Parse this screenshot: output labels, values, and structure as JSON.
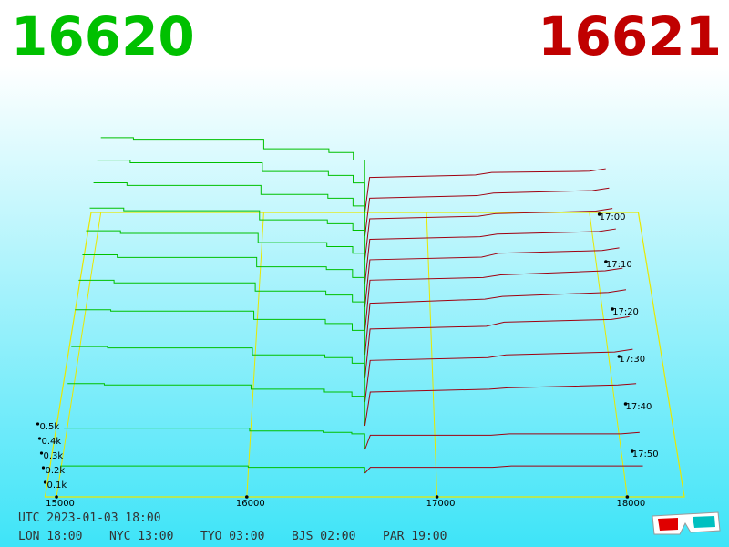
{
  "chart_data": {
    "type": "depth3d",
    "best_bid": "16620",
    "best_ask": "16621",
    "bid_color": "#00c000",
    "ask_color": "#a00010",
    "xlim": [
      14940,
      18300
    ],
    "xticks": [
      15000,
      16000,
      17000,
      18000
    ],
    "tlim": [
      0,
      60
    ],
    "tticks": [
      {
        "value": 0,
        "label": "17:00"
      },
      {
        "value": 10,
        "label": "17:10"
      },
      {
        "value": 20,
        "label": "17:20"
      },
      {
        "value": 30,
        "label": "17:30"
      },
      {
        "value": 40,
        "label": "17:40"
      },
      {
        "value": 50,
        "label": "17:50"
      }
    ],
    "vticks": [
      {
        "value": 0.1,
        "label": "0.1k"
      },
      {
        "value": 0.2,
        "label": "0.2k"
      },
      {
        "value": 0.3,
        "label": "0.3k"
      },
      {
        "value": 0.4,
        "label": "0.4k"
      },
      {
        "value": 0.5,
        "label": "0.5k"
      }
    ],
    "bid_prices": [
      15000,
      15200,
      16000,
      16400,
      16550,
      16620
    ],
    "ask_prices": [
      16621,
      16650,
      17300,
      17400,
      18000,
      18100
    ],
    "slices": [
      {
        "t": 0,
        "bids": [
          0.6,
          0.58,
          0.51,
          0.48,
          0.42,
          0
        ],
        "asks": [
          0,
          0.28,
          0.3,
          0.32,
          0.33,
          0.35
        ]
      },
      {
        "t": 5,
        "bids": [
          0.6,
          0.58,
          0.51,
          0.48,
          0.42,
          0
        ],
        "asks": [
          0,
          0.3,
          0.32,
          0.34,
          0.36,
          0.38
        ]
      },
      {
        "t": 10,
        "bids": [
          0.6,
          0.58,
          0.51,
          0.48,
          0.42,
          0
        ],
        "asks": [
          0,
          0.32,
          0.34,
          0.36,
          0.38,
          0.4
        ]
      },
      {
        "t": 15,
        "bids": [
          0.58,
          0.56,
          0.49,
          0.46,
          0.41,
          0
        ],
        "asks": [
          0,
          0.34,
          0.36,
          0.38,
          0.4,
          0.42
        ]
      },
      {
        "t": 20,
        "bids": [
          0.58,
          0.56,
          0.49,
          0.46,
          0.41,
          0
        ],
        "asks": [
          0,
          0.36,
          0.38,
          0.41,
          0.43,
          0.45
        ]
      },
      {
        "t": 25,
        "bids": [
          0.57,
          0.55,
          0.48,
          0.46,
          0.4,
          0
        ],
        "asks": [
          0,
          0.38,
          0.4,
          0.42,
          0.45,
          0.47
        ]
      },
      {
        "t": 30,
        "bids": [
          0.55,
          0.53,
          0.47,
          0.44,
          0.39,
          0
        ],
        "asks": [
          0,
          0.38,
          0.41,
          0.43,
          0.46,
          0.48
        ]
      },
      {
        "t": 35,
        "bids": [
          0.5,
          0.49,
          0.43,
          0.4,
          0.35,
          0
        ],
        "asks": [
          0,
          0.36,
          0.38,
          0.41,
          0.43,
          0.45
        ]
      },
      {
        "t": 40,
        "bids": [
          0.4,
          0.39,
          0.34,
          0.32,
          0.28,
          0
        ],
        "asks": [
          0,
          0.3,
          0.32,
          0.34,
          0.36,
          0.38
        ]
      },
      {
        "t": 45,
        "bids": [
          0.3,
          0.29,
          0.26,
          0.24,
          0.21,
          0
        ],
        "asks": [
          0,
          0.24,
          0.26,
          0.27,
          0.29,
          0.3
        ]
      },
      {
        "t": 50,
        "bids": [
          0.15,
          0.15,
          0.13,
          0.12,
          0.11,
          0
        ],
        "asks": [
          0,
          0.1,
          0.1,
          0.11,
          0.11,
          0.12
        ]
      },
      {
        "t": 55,
        "bids": [
          0.05,
          0.05,
          0.04,
          0.04,
          0.04,
          0
        ],
        "asks": [
          0,
          0.04,
          0.04,
          0.05,
          0.05,
          0.05
        ]
      }
    ],
    "footer": {
      "utc": "UTC 2023-01-03 18:00",
      "clocks": [
        "LON 18:00",
        "NYC 13:00",
        "TYO 03:00",
        "BJS 02:00",
        "PAR 19:00"
      ]
    }
  }
}
